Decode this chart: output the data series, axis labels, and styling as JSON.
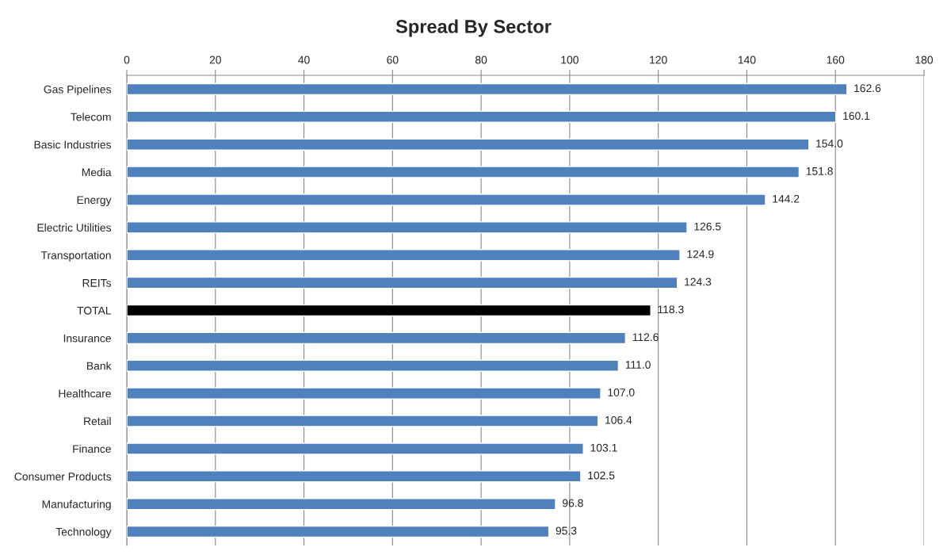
{
  "chart_data": {
    "type": "bar",
    "title": "Spread By Sector",
    "orientation": "horizontal",
    "categories": [
      "Gas Pipelines",
      "Telecom",
      "Basic Industries",
      "Media",
      "Energy",
      "Electric Utilities",
      "Transportation",
      "REITs",
      "TOTAL",
      "Insurance",
      "Bank",
      "Healthcare",
      "Retail",
      "Finance",
      "Consumer Products",
      "Manufacturing",
      "Technology"
    ],
    "values": [
      162.6,
      160.1,
      154.0,
      151.8,
      144.2,
      126.5,
      124.9,
      124.3,
      118.3,
      112.6,
      111.0,
      107.0,
      106.4,
      103.1,
      102.5,
      96.8,
      95.3
    ],
    "value_labels": [
      "162.6",
      "160.1",
      "154.0",
      "151.8",
      "144.2",
      "126.5",
      "124.9",
      "124.3",
      "118.3",
      "112.6",
      "111.0",
      "107.0",
      "106.4",
      "103.1",
      "102.5",
      "96.8",
      "95.3"
    ],
    "colors": [
      "#4f81bd",
      "#4f81bd",
      "#4f81bd",
      "#4f81bd",
      "#4f81bd",
      "#4f81bd",
      "#4f81bd",
      "#4f81bd",
      "#000000",
      "#4f81bd",
      "#4f81bd",
      "#4f81bd",
      "#4f81bd",
      "#4f81bd",
      "#4f81bd",
      "#4f81bd",
      "#4f81bd"
    ],
    "xlim": [
      0,
      180
    ],
    "xticks": [
      0,
      20,
      40,
      60,
      80,
      100,
      120,
      140,
      160,
      180
    ],
    "grid": "x",
    "legend": false
  }
}
